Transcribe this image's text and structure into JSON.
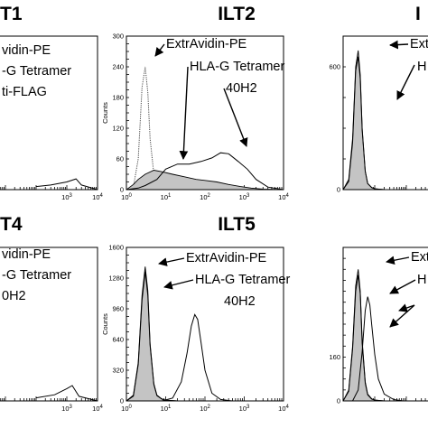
{
  "figure": {
    "panel_titles": [
      "T1",
      "ILT2",
      "I",
      "T4",
      "ILT5",
      ""
    ]
  },
  "chart_data": [
    {
      "type": "area",
      "title": "T1",
      "xlabel": "",
      "ylabel": "",
      "x_scale": "log",
      "xlim": [
        1,
        10000
      ],
      "xticks": [
        "10^3",
        "10^4"
      ],
      "yticks": [],
      "annotations": [
        "vidin-PE",
        "-G Tetramer",
        "ti-FLAG"
      ],
      "series": [
        {
          "style": "outline",
          "x": [
            100,
            300,
            1000,
            2000,
            3000,
            10000
          ],
          "y": [
            0.02,
            0.03,
            0.05,
            0.07,
            0.03,
            0.0
          ]
        }
      ]
    },
    {
      "type": "area",
      "title": "ILT2",
      "xlabel": "",
      "ylabel": "Counts",
      "x_scale": "log",
      "xlim": [
        1,
        10000
      ],
      "ylim": [
        0,
        300
      ],
      "xticks": [
        "10^0",
        "10^1",
        "10^2",
        "10^3",
        "10^4"
      ],
      "yticks": [
        "0",
        "60",
        "120",
        "180",
        "240",
        "300"
      ],
      "annotations": [
        "ExtrAvidin-PE",
        "HLA-G Tetramer",
        "40H2"
      ],
      "series": [
        {
          "style": "dotted",
          "x": [
            1,
            1.5,
            2,
            2.5,
            3,
            3.5,
            4,
            5,
            6,
            8,
            10,
            20
          ],
          "y": [
            0,
            5,
            60,
            200,
            240,
            190,
            100,
            30,
            10,
            4,
            2,
            0
          ]
        },
        {
          "style": "filled",
          "x": [
            1,
            1.5,
            2,
            3,
            5,
            8,
            15,
            30,
            60,
            100,
            200,
            400,
            800,
            1500,
            3000,
            10000
          ],
          "y": [
            0,
            10,
            20,
            30,
            38,
            35,
            30,
            25,
            20,
            18,
            15,
            10,
            6,
            3,
            1,
            0
          ]
        },
        {
          "style": "outline",
          "x": [
            1,
            2,
            3,
            6,
            10,
            20,
            40,
            80,
            150,
            250,
            400,
            700,
            1200,
            2000,
            4000,
            10000
          ],
          "y": [
            0,
            3,
            8,
            20,
            40,
            50,
            50,
            55,
            62,
            72,
            70,
            55,
            40,
            20,
            5,
            0
          ]
        }
      ]
    },
    {
      "type": "area",
      "title": "I",
      "xlabel": "",
      "ylabel": "",
      "x_scale": "log",
      "xlim": [
        1,
        10000
      ],
      "ylim": [
        0,
        750
      ],
      "xticks": [],
      "yticks": [
        "0",
        "600"
      ],
      "annotations": [
        "Ext",
        "H"
      ],
      "series": [
        {
          "style": "filled",
          "x": [
            1,
            1.5,
            2,
            2.5,
            3,
            3.5,
            4,
            5,
            6,
            8,
            10,
            20
          ],
          "y": [
            0,
            50,
            250,
            600,
            680,
            560,
            300,
            90,
            30,
            10,
            4,
            0
          ]
        },
        {
          "style": "outline",
          "x": [
            1,
            1.5,
            2,
            2.5,
            3,
            3.5,
            4,
            5,
            6,
            8,
            10,
            20
          ],
          "y": [
            0,
            40,
            230,
            580,
            650,
            540,
            290,
            90,
            30,
            10,
            4,
            0
          ]
        }
      ]
    },
    {
      "type": "area",
      "title": "T4",
      "xlabel": "",
      "ylabel": "",
      "x_scale": "log",
      "xlim": [
        1,
        10000
      ],
      "xticks": [
        "10^3",
        "10^4"
      ],
      "yticks": [],
      "annotations": [
        "vidin-PE",
        "-G Tetramer",
        "0H2"
      ],
      "series": [
        {
          "style": "outline",
          "x": [
            100,
            400,
            1000,
            1500,
            2500,
            10000
          ],
          "y": [
            0.02,
            0.04,
            0.08,
            0.1,
            0.03,
            0.0
          ]
        }
      ]
    },
    {
      "type": "area",
      "title": "ILT5",
      "xlabel": "",
      "ylabel": "Counts",
      "x_scale": "log",
      "xlim": [
        1,
        10000
      ],
      "ylim": [
        0,
        1600
      ],
      "xticks": [
        "10^0",
        "10^1",
        "10^2",
        "10^3",
        "10^4"
      ],
      "yticks": [
        "0",
        "320",
        "640",
        "960",
        "1280",
        "1600"
      ],
      "annotations": [
        "ExtrAvidin-PE",
        "HLA-G Tetramer",
        "40H2"
      ],
      "series": [
        {
          "style": "filled",
          "x": [
            1,
            1.5,
            2,
            2.5,
            3,
            3.5,
            4,
            5,
            6,
            8,
            10,
            20
          ],
          "y": [
            0,
            60,
            400,
            1100,
            1400,
            1150,
            600,
            180,
            60,
            20,
            8,
            0
          ]
        },
        {
          "style": "outline",
          "x": [
            1,
            1.5,
            2,
            2.5,
            3,
            3.5,
            4,
            5,
            6,
            8,
            10,
            20
          ],
          "y": [
            0,
            50,
            380,
            1050,
            1350,
            1100,
            580,
            170,
            55,
            18,
            6,
            0
          ]
        },
        {
          "style": "outline",
          "x": [
            8,
            15,
            25,
            35,
            45,
            55,
            65,
            80,
            100,
            150,
            250,
            500
          ],
          "y": [
            0,
            30,
            200,
            500,
            780,
            900,
            850,
            600,
            320,
            80,
            15,
            0
          ]
        }
      ]
    },
    {
      "type": "area",
      "title": "",
      "xlabel": "",
      "ylabel": "",
      "x_scale": "log",
      "xlim": [
        1,
        10000
      ],
      "ylim": [
        0,
        560
      ],
      "xticks": [],
      "yticks": [
        "0",
        "160"
      ],
      "annotations": [
        "Ext",
        "H"
      ],
      "series": [
        {
          "style": "filled",
          "x": [
            1,
            1.5,
            2,
            2.5,
            3,
            3.5,
            4,
            5,
            6,
            8,
            10,
            20
          ],
          "y": [
            0,
            40,
            200,
            420,
            480,
            400,
            220,
            70,
            25,
            8,
            3,
            0
          ]
        },
        {
          "style": "outline",
          "x": [
            1,
            1.5,
            2,
            2.5,
            3,
            3.5,
            4,
            5,
            6,
            8,
            10,
            20
          ],
          "y": [
            0,
            35,
            190,
            400,
            460,
            390,
            210,
            65,
            22,
            7,
            3,
            0
          ]
        },
        {
          "style": "outline",
          "x": [
            2,
            3,
            4,
            5,
            6,
            7,
            8,
            10,
            13,
            20,
            40,
            80
          ],
          "y": [
            0,
            40,
            180,
            330,
            380,
            350,
            280,
            170,
            80,
            25,
            5,
            0
          ]
        }
      ]
    }
  ]
}
